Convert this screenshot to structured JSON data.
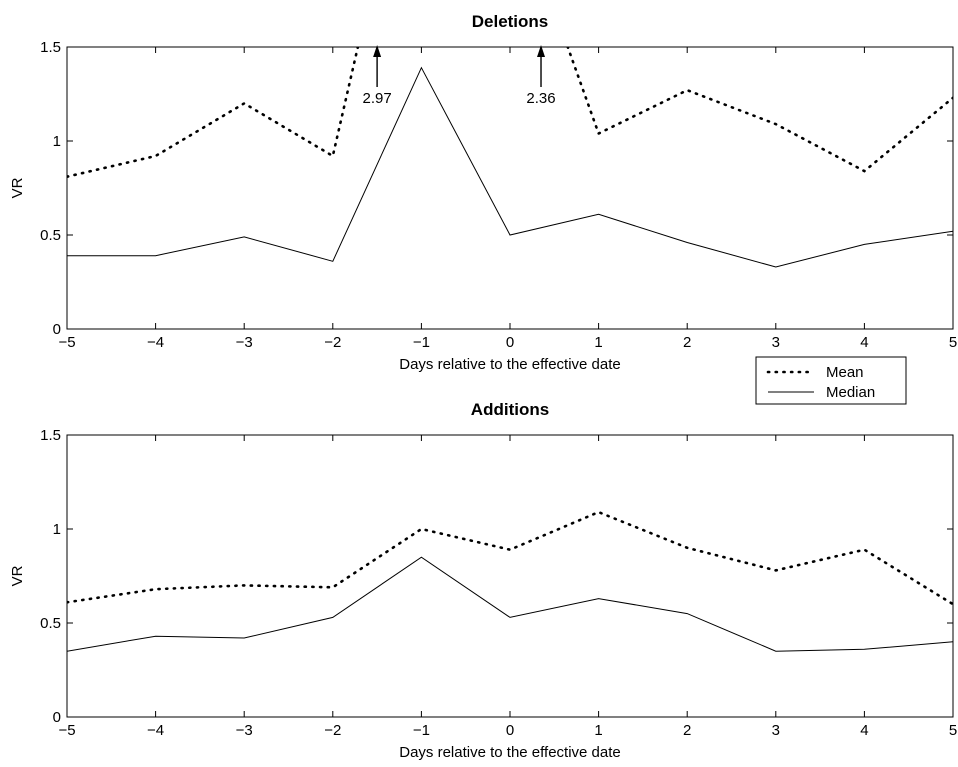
{
  "chart_data": [
    {
      "type": "line",
      "title": "Deletions",
      "xlabel": "Days relative to the effective date",
      "ylabel": "VR",
      "xlim": [
        -5,
        5
      ],
      "ylim": [
        0,
        1.5
      ],
      "x": [
        -5,
        -4,
        -3,
        -2,
        -1,
        0,
        1,
        2,
        3,
        4,
        5
      ],
      "xticks": [
        "−5",
        "−4",
        "−3",
        "−2",
        "−1",
        "0",
        "1",
        "2",
        "3",
        "4",
        "5"
      ],
      "yticks": [
        "0",
        "0.5",
        "1",
        "1.5"
      ],
      "series": [
        {
          "name": "Mean",
          "style": "dotted",
          "values": [
            0.81,
            0.92,
            1.2,
            0.92,
            2.97,
            2.36,
            1.04,
            1.27,
            1.09,
            0.84,
            1.23
          ]
        },
        {
          "name": "Median",
          "style": "solid",
          "values": [
            0.39,
            0.39,
            0.49,
            0.36,
            1.39,
            0.5,
            0.61,
            0.46,
            0.33,
            0.45,
            0.52
          ]
        }
      ],
      "annotations": [
        {
          "text": "2.97",
          "x": -1.5,
          "y": 1.5
        },
        {
          "text": "2.36",
          "x": 0.35,
          "y": 1.5
        }
      ],
      "legend": {
        "placement": "below-right",
        "entries": [
          "Mean",
          "Median"
        ]
      },
      "grid": false
    },
    {
      "type": "line",
      "title": "Additions",
      "xlabel": "Days relative to the effective date",
      "ylabel": "VR",
      "xlim": [
        -5,
        5
      ],
      "ylim": [
        0,
        1.5
      ],
      "x": [
        -5,
        -4,
        -3,
        -2,
        -1,
        0,
        1,
        2,
        3,
        4,
        5
      ],
      "xticks": [
        "−5",
        "−4",
        "−3",
        "−2",
        "−1",
        "0",
        "1",
        "2",
        "3",
        "4",
        "5"
      ],
      "yticks": [
        "0",
        "0.5",
        "1",
        "1.5"
      ],
      "series": [
        {
          "name": "Mean",
          "style": "dotted",
          "values": [
            0.61,
            0.68,
            0.7,
            0.69,
            1.0,
            0.89,
            1.09,
            0.9,
            0.78,
            0.89,
            0.6
          ]
        },
        {
          "name": "Median",
          "style": "solid",
          "values": [
            0.35,
            0.43,
            0.42,
            0.53,
            0.85,
            0.53,
            0.63,
            0.55,
            0.35,
            0.36,
            0.4
          ]
        }
      ],
      "grid": false
    }
  ]
}
